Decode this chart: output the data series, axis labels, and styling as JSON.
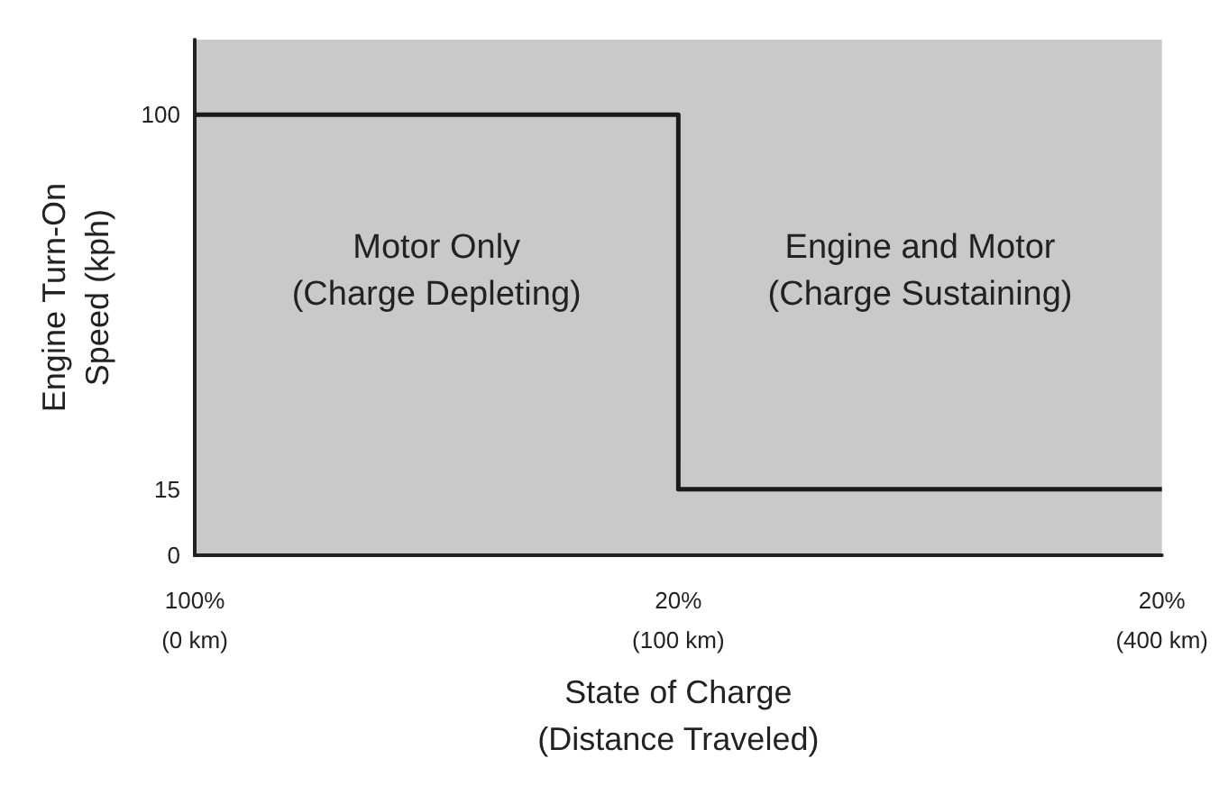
{
  "chart_data": {
    "type": "step",
    "xlabel": "State of Charge\n(Distance Traveled)",
    "ylabel": "Engine Turn-On\nSpeed (kph)",
    "categories": [
      "100%\n(0 km)",
      "20%\n(100 km)",
      "20%\n(400 km)"
    ],
    "series": [
      {
        "color": "#1a1a1a",
        "values": [
          100,
          15,
          15
        ]
      }
    ],
    "ylim": [
      0,
      117
    ],
    "yticks": [
      0,
      15,
      100
    ],
    "grid": false,
    "marker": "none",
    "line_style": "solid",
    "annotations": [
      "Motor Only\n(Charge Depleting)",
      "Engine and Motor\n(Charge Sustaining)"
    ]
  }
}
